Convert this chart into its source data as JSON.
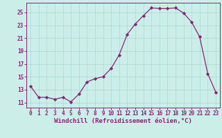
{
  "x": [
    0,
    1,
    2,
    3,
    4,
    5,
    6,
    7,
    8,
    9,
    10,
    11,
    12,
    13,
    14,
    15,
    16,
    17,
    18,
    19,
    20,
    21,
    22,
    23
  ],
  "y": [
    13.5,
    11.8,
    11.8,
    11.5,
    11.8,
    11.1,
    12.3,
    14.2,
    14.7,
    15.0,
    16.3,
    18.4,
    21.6,
    23.2,
    24.5,
    25.7,
    25.6,
    25.6,
    25.7,
    24.9,
    23.5,
    21.2,
    15.5,
    12.6
  ],
  "line_color": "#882277",
  "marker": "D",
  "marker_size": 2.2,
  "bg_color": "#cceee8",
  "grid_color": "#aad8d4",
  "tick_color": "#882277",
  "xlabel": "Windchill (Refroidissement éolien,°C)",
  "xlabel_fontsize": 6.5,
  "ylabel_ticks": [
    11,
    13,
    15,
    17,
    19,
    21,
    23,
    25
  ],
  "xlim": [
    -0.5,
    23.5
  ],
  "ylim": [
    10.2,
    26.5
  ],
  "xticks": [
    0,
    1,
    2,
    3,
    4,
    5,
    6,
    7,
    8,
    9,
    10,
    11,
    12,
    13,
    14,
    15,
    16,
    17,
    18,
    19,
    20,
    21,
    22,
    23
  ],
  "tick_fontsize": 5.5,
  "linewidth": 0.9
}
